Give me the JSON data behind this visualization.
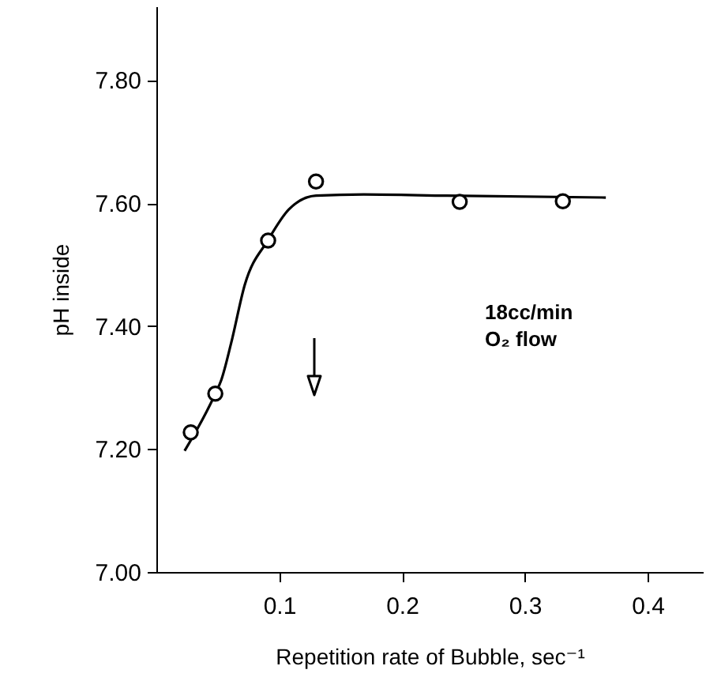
{
  "chart_data": {
    "type": "scatter",
    "xlabel": "Repetition rate of Bubble, sec⁻¹",
    "ylabel": "pH inside",
    "xlim": [
      0,
      0.445
    ],
    "ylim": [
      7.0,
      7.92
    ],
    "xticks": [
      0.1,
      0.2,
      0.3,
      0.4
    ],
    "yticks": [
      {
        "value": 7.0,
        "label": "7.00"
      },
      {
        "value": 7.2,
        "label": "7.20"
      },
      {
        "value": 7.4,
        "label": "7.40"
      },
      {
        "value": 7.6,
        "label": "7.60"
      },
      {
        "value": 7.8,
        "label": "7.80"
      }
    ],
    "grid": false,
    "series": [
      {
        "marker": "circle",
        "color": "#000000",
        "x": [
          0.028,
          0.048,
          0.091,
          0.13,
          0.247,
          0.331
        ],
        "values": [
          7.227,
          7.29,
          7.539,
          7.635,
          7.602,
          7.603
        ]
      },
      {
        "type": "line",
        "line_style": "solid",
        "color": "#000000",
        "x": [
          0.023,
          0.048,
          0.053,
          0.061,
          0.072,
          0.091,
          0.108,
          0.13,
          0.169,
          0.237,
          0.366
        ],
        "values": [
          7.197,
          7.29,
          7.313,
          7.373,
          7.467,
          7.54,
          7.59,
          7.612,
          7.614,
          7.612,
          7.609
        ]
      }
    ],
    "annotations": [
      "18cc/min\nO₂ flow"
    ]
  }
}
